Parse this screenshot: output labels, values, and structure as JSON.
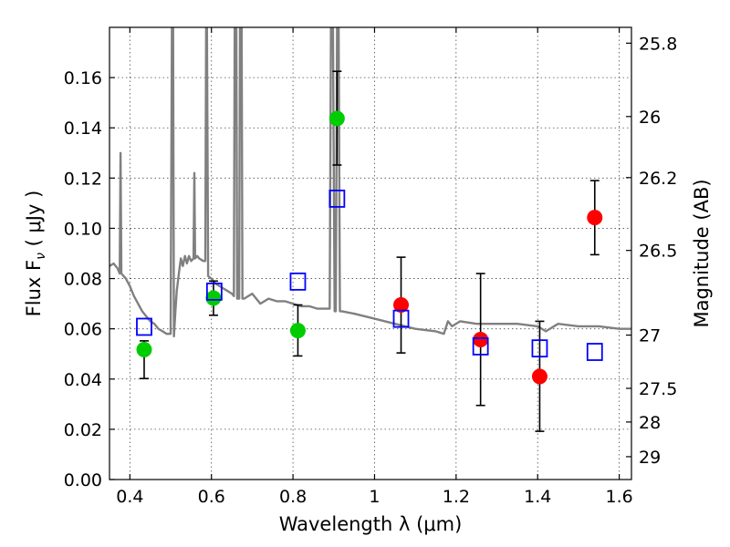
{
  "chart_data": {
    "type": "scatter",
    "xlabel": "Wavelength  λ (μm)",
    "ylabel": "Flux  F",
    "ylabel_sub": "ν",
    "ylabel_unit": "  ( μJy )",
    "y2label": "Magnitude (AB)",
    "xlim": [
      0.35,
      1.63
    ],
    "ylim": [
      0.0,
      0.18
    ],
    "grid": true,
    "x_ticks": [
      0.4,
      0.6,
      0.8,
      1.0,
      1.2,
      1.4,
      1.6
    ],
    "x_tick_labels": [
      "0.4",
      "0.6",
      "0.8",
      "1",
      "1.2",
      "1.4",
      "1.6"
    ],
    "y_ticks": [
      0.0,
      0.02,
      0.04,
      0.06,
      0.08,
      0.1,
      0.12,
      0.14,
      0.16
    ],
    "y_tick_labels": [
      "0.00",
      "0.02",
      "0.04",
      "0.06",
      "0.08",
      "0.10",
      "0.12",
      "0.14",
      "0.16"
    ],
    "y2_ticks": [
      {
        "label": "25.8",
        "flux": 0.1737
      },
      {
        "label": "26",
        "flux": 0.1445
      },
      {
        "label": "26.2",
        "flux": 0.1202
      },
      {
        "label": "26.5",
        "flux": 0.0912
      },
      {
        "label": "27",
        "flux": 0.0575
      },
      {
        "label": "27.5",
        "flux": 0.0363
      },
      {
        "label": "28",
        "flux": 0.0229
      },
      {
        "label": "29",
        "flux": 0.0091
      }
    ],
    "series": [
      {
        "color": "#808080",
        "kind": "spectrum",
        "points": [
          [
            0.35,
            0.085
          ],
          [
            0.36,
            0.086
          ],
          [
            0.37,
            0.084
          ],
          [
            0.375,
            0.082
          ],
          [
            0.377,
            0.13
          ],
          [
            0.379,
            0.082
          ],
          [
            0.39,
            0.08
          ],
          [
            0.4,
            0.077
          ],
          [
            0.41,
            0.073
          ],
          [
            0.42,
            0.07
          ],
          [
            0.43,
            0.067
          ],
          [
            0.44,
            0.065
          ],
          [
            0.45,
            0.063
          ],
          [
            0.46,
            0.062
          ],
          [
            0.47,
            0.06
          ],
          [
            0.48,
            0.059
          ],
          [
            0.49,
            0.058
          ],
          [
            0.5,
            0.058
          ],
          [
            0.503,
            0.18
          ],
          [
            0.506,
            0.18
          ],
          [
            0.508,
            0.057
          ],
          [
            0.512,
            0.068
          ],
          [
            0.515,
            0.075
          ],
          [
            0.52,
            0.082
          ],
          [
            0.525,
            0.088
          ],
          [
            0.53,
            0.085
          ],
          [
            0.535,
            0.089
          ],
          [
            0.54,
            0.086
          ],
          [
            0.545,
            0.089
          ],
          [
            0.55,
            0.087
          ],
          [
            0.556,
            0.088
          ],
          [
            0.558,
            0.122
          ],
          [
            0.56,
            0.088
          ],
          [
            0.565,
            0.089
          ],
          [
            0.57,
            0.088
          ],
          [
            0.58,
            0.087
          ],
          [
            0.585,
            0.087
          ],
          [
            0.587,
            0.18
          ],
          [
            0.589,
            0.18
          ],
          [
            0.592,
            0.081
          ],
          [
            0.6,
            0.08
          ],
          [
            0.61,
            0.078
          ],
          [
            0.62,
            0.077
          ],
          [
            0.63,
            0.076
          ],
          [
            0.64,
            0.075
          ],
          [
            0.65,
            0.074
          ],
          [
            0.655,
            0.073
          ],
          [
            0.657,
            0.18
          ],
          [
            0.661,
            0.18
          ],
          [
            0.663,
            0.072
          ],
          [
            0.668,
            0.072
          ],
          [
            0.67,
            0.18
          ],
          [
            0.674,
            0.18
          ],
          [
            0.676,
            0.072
          ],
          [
            0.68,
            0.072
          ],
          [
            0.7,
            0.074
          ],
          [
            0.72,
            0.07
          ],
          [
            0.74,
            0.072
          ],
          [
            0.76,
            0.071
          ],
          [
            0.78,
            0.071
          ],
          [
            0.8,
            0.07
          ],
          [
            0.82,
            0.069
          ],
          [
            0.84,
            0.069
          ],
          [
            0.86,
            0.068
          ],
          [
            0.88,
            0.068
          ],
          [
            0.89,
            0.068
          ],
          [
            0.893,
            0.18
          ],
          [
            0.898,
            0.18
          ],
          [
            0.902,
            0.067
          ],
          [
            0.905,
            0.067
          ],
          [
            0.908,
            0.18
          ],
          [
            0.912,
            0.18
          ],
          [
            0.915,
            0.067
          ],
          [
            0.92,
            0.067
          ],
          [
            0.95,
            0.066
          ],
          [
            1.0,
            0.064
          ],
          [
            1.05,
            0.062
          ],
          [
            1.1,
            0.06
          ],
          [
            1.15,
            0.059
          ],
          [
            1.17,
            0.058
          ],
          [
            1.18,
            0.063
          ],
          [
            1.19,
            0.061
          ],
          [
            1.21,
            0.063
          ],
          [
            1.25,
            0.062
          ],
          [
            1.3,
            0.062
          ],
          [
            1.35,
            0.062
          ],
          [
            1.4,
            0.061
          ],
          [
            1.42,
            0.059
          ],
          [
            1.45,
            0.062
          ],
          [
            1.5,
            0.061
          ],
          [
            1.55,
            0.061
          ],
          [
            1.6,
            0.06
          ],
          [
            1.63,
            0.06
          ]
        ]
      },
      {
        "color": "#00cc00",
        "kind": "circle",
        "points": [
          {
            "x": 0.435,
            "y": 0.0517,
            "yerr_low": 0.0402,
            "yerr_high": 0.0552
          },
          {
            "x": 0.605,
            "y": 0.0722,
            "yerr_low": 0.0654,
            "yerr_high": 0.079
          },
          {
            "x": 0.812,
            "y": 0.0593,
            "yerr_low": 0.0492,
            "yerr_high": 0.0695
          },
          {
            "x": 0.908,
            "y": 0.1437,
            "yerr_low": 0.1252,
            "yerr_high": 0.1625
          }
        ]
      },
      {
        "color": "#ff0000",
        "kind": "circle",
        "points": [
          {
            "x": 1.065,
            "y": 0.0695,
            "yerr_low": 0.0504,
            "yerr_high": 0.0885
          },
          {
            "x": 1.26,
            "y": 0.0557,
            "yerr_low": 0.0295,
            "yerr_high": 0.082
          },
          {
            "x": 1.405,
            "y": 0.041,
            "yerr_low": 0.0192,
            "yerr_high": 0.063
          },
          {
            "x": 1.54,
            "y": 0.1043,
            "yerr_low": 0.0895,
            "yerr_high": 0.119
          }
        ]
      },
      {
        "color": "#0000ff",
        "kind": "square",
        "points": [
          {
            "x": 0.435,
            "y": 0.0608
          },
          {
            "x": 0.607,
            "y": 0.0748
          },
          {
            "x": 0.812,
            "y": 0.0788
          },
          {
            "x": 0.908,
            "y": 0.1118
          },
          {
            "x": 1.065,
            "y": 0.064
          },
          {
            "x": 1.26,
            "y": 0.053
          },
          {
            "x": 1.405,
            "y": 0.0522
          },
          {
            "x": 1.54,
            "y": 0.0508
          }
        ]
      }
    ]
  }
}
